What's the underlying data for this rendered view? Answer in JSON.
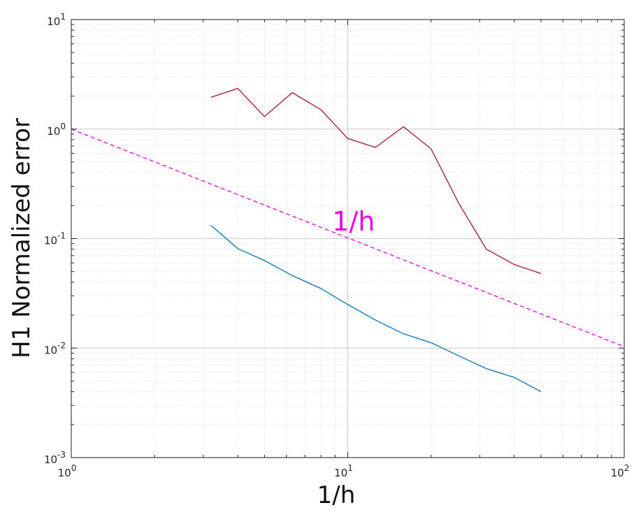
{
  "chart_data": {
    "type": "line",
    "xscale": "log",
    "yscale": "log",
    "xlim": [
      1,
      100
    ],
    "ylim": [
      0.001,
      10
    ],
    "xlabel": "1/h",
    "ylabel": "H1 Normalized error",
    "grid": true,
    "minor_grid": true,
    "x_tick_labels": [
      {
        "value": 1,
        "base": "10",
        "exp": "0"
      },
      {
        "value": 10,
        "base": "10",
        "exp": "1"
      },
      {
        "value": 100,
        "base": "10",
        "exp": "2"
      }
    ],
    "y_tick_labels": [
      {
        "value": 0.001,
        "base": "10",
        "exp": "-3"
      },
      {
        "value": 0.01,
        "base": "10",
        "exp": "-2"
      },
      {
        "value": 0.1,
        "base": "10",
        "exp": "-1"
      },
      {
        "value": 1,
        "base": "10",
        "exp": "0"
      },
      {
        "value": 10,
        "base": "10",
        "exp": "1"
      }
    ],
    "series": [
      {
        "color": "#A2142F",
        "style": "solid",
        "x": [
          3.2,
          4,
          5,
          6.3,
          8,
          10,
          12.6,
          15.9,
          20,
          25.2,
          31.7,
          40,
          50
        ],
        "y": [
          1.95,
          2.35,
          1.3,
          2.15,
          1.5,
          0.82,
          0.68,
          1.05,
          0.66,
          0.21,
          0.08,
          0.058,
          0.048
        ]
      },
      {
        "color": "#0072BD",
        "style": "solid",
        "x": [
          3.2,
          4,
          5,
          6.3,
          8,
          10,
          12.6,
          15.9,
          20,
          25.2,
          31.7,
          40,
          50
        ],
        "y": [
          0.132,
          0.081,
          0.063,
          0.046,
          0.035,
          0.025,
          0.018,
          0.0135,
          0.0112,
          0.0085,
          0.0065,
          0.0054,
          0.004
        ]
      },
      {
        "color": "#E600E6",
        "style": "dashed",
        "x": [
          1,
          100
        ],
        "y": [
          1,
          0.0103
        ]
      }
    ],
    "annotations": [
      {
        "text": "1/h",
        "x": 10.5,
        "y": 0.15,
        "color": "#E600E6"
      }
    ]
  }
}
